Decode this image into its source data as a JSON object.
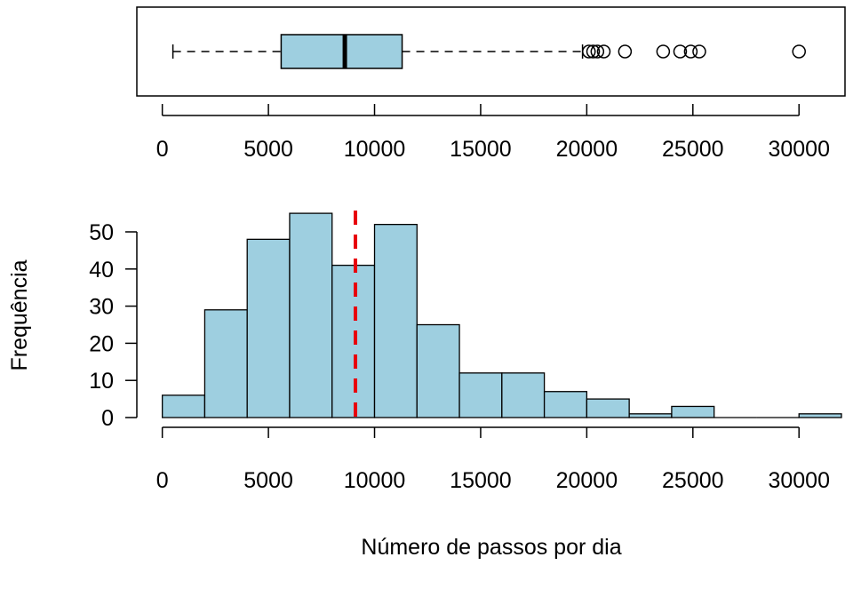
{
  "chart_data": [
    {
      "type": "boxplot",
      "orientation": "horizontal",
      "stats": {
        "whisker_low": 500,
        "q1": 5600,
        "median": 8600,
        "q3": 11300,
        "whisker_high": 19800
      },
      "outliers": [
        20100,
        20300,
        20500,
        20800,
        21800,
        23600,
        24400,
        24900,
        25300,
        30000
      ],
      "xlim": [
        -1200,
        32000
      ],
      "xticks": [
        0,
        5000,
        10000,
        15000,
        20000,
        25000,
        30000
      ],
      "xtick_labels": [
        "0",
        "5000",
        "10000",
        "15000",
        "20000",
        "25000",
        "30000"
      ],
      "box_color": "#9ECFE0"
    },
    {
      "type": "histogram",
      "bins": [
        {
          "x0": 0,
          "x1": 2000,
          "count": 6
        },
        {
          "x0": 2000,
          "x1": 4000,
          "count": 29
        },
        {
          "x0": 4000,
          "x1": 6000,
          "count": 48
        },
        {
          "x0": 6000,
          "x1": 8000,
          "count": 55
        },
        {
          "x0": 8000,
          "x1": 10000,
          "count": 41
        },
        {
          "x0": 10000,
          "x1": 12000,
          "count": 52
        },
        {
          "x0": 12000,
          "x1": 14000,
          "count": 25
        },
        {
          "x0": 14000,
          "x1": 16000,
          "count": 12
        },
        {
          "x0": 16000,
          "x1": 18000,
          "count": 12
        },
        {
          "x0": 18000,
          "x1": 20000,
          "count": 7
        },
        {
          "x0": 20000,
          "x1": 22000,
          "count": 5
        },
        {
          "x0": 22000,
          "x1": 24000,
          "count": 1
        },
        {
          "x0": 24000,
          "x1": 26000,
          "count": 3
        },
        {
          "x0": 26000,
          "x1": 28000,
          "count": 0
        },
        {
          "x0": 28000,
          "x1": 30000,
          "count": 0
        },
        {
          "x0": 30000,
          "x1": 32000,
          "count": 1
        }
      ],
      "mean_line": {
        "x": 9100,
        "color": "#E8000B",
        "style": "dashed"
      },
      "xlim": [
        -1200,
        32000
      ],
      "ylim": [
        0,
        56
      ],
      "xticks": [
        0,
        5000,
        10000,
        15000,
        20000,
        25000,
        30000
      ],
      "xtick_labels": [
        "0",
        "5000",
        "10000",
        "15000",
        "20000",
        "25000",
        "30000"
      ],
      "yticks": [
        0,
        10,
        20,
        30,
        40,
        50
      ],
      "ytick_labels": [
        "0",
        "10",
        "20",
        "30",
        "40",
        "50"
      ],
      "xlabel": "Número de passos por dia",
      "ylabel": "Frequência",
      "bar_color": "#9ECFE0"
    }
  ]
}
